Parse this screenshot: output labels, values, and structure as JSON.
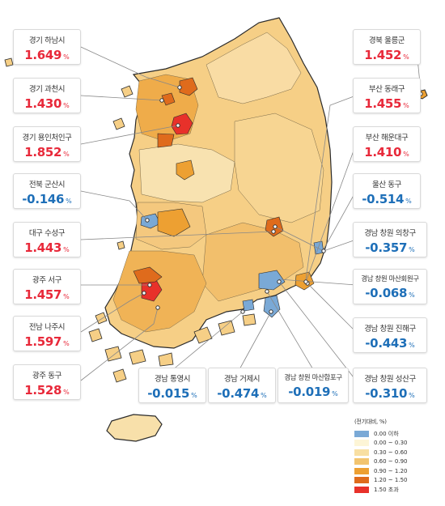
{
  "callouts": [
    {
      "name": "경기 하남시",
      "value": "1.649",
      "unit": "%",
      "sign": "pos"
    },
    {
      "name": "경기 과천시",
      "value": "1.430",
      "unit": "%",
      "sign": "pos"
    },
    {
      "name": "경기 용인처인구",
      "value": "1.852",
      "unit": "%",
      "sign": "pos"
    },
    {
      "name": "전북 군산시",
      "value": "-0.146",
      "unit": "%",
      "sign": "neg"
    },
    {
      "name": "대구 수성구",
      "value": "1.443",
      "unit": "%",
      "sign": "pos"
    },
    {
      "name": "광주 서구",
      "value": "1.457",
      "unit": "%",
      "sign": "pos"
    },
    {
      "name": "전남 나주시",
      "value": "1.597",
      "unit": "%",
      "sign": "pos"
    },
    {
      "name": "광주 동구",
      "value": "1.528",
      "unit": "%",
      "sign": "pos"
    },
    {
      "name": "경남 통영시",
      "value": "-0.015",
      "unit": "%",
      "sign": "neg"
    },
    {
      "name": "경남 거제시",
      "value": "-0.474",
      "unit": "%",
      "sign": "neg"
    },
    {
      "name": "경남 창원 마산합포구",
      "value": "-0.019",
      "unit": "%",
      "sign": "neg"
    },
    {
      "name": "경남 창원 성산구",
      "value": "-0.310",
      "unit": "%",
      "sign": "neg"
    },
    {
      "name": "경남 창원 진해구",
      "value": "-0.443",
      "unit": "%",
      "sign": "neg"
    },
    {
      "name": "경남 창원 마산회원구",
      "value": "-0.068",
      "unit": "%",
      "sign": "neg"
    },
    {
      "name": "경남 창원 의창구",
      "value": "-0.357",
      "unit": "%",
      "sign": "neg"
    },
    {
      "name": "울산 동구",
      "value": "-0.514",
      "unit": "%",
      "sign": "neg"
    },
    {
      "name": "부산 해운대구",
      "value": "1.410",
      "unit": "%",
      "sign": "pos"
    },
    {
      "name": "부산 동래구",
      "value": "1.455",
      "unit": "%",
      "sign": "pos"
    },
    {
      "name": "경북 울릉군",
      "value": "1.452",
      "unit": "%",
      "sign": "pos"
    }
  ],
  "legend": {
    "title": "(전기대비, %)",
    "items": [
      {
        "label": "0.00 이하",
        "color": "#7aa9d6"
      },
      {
        "label": "0.00 ~ 0.30",
        "color": "#fdf5d6"
      },
      {
        "label": "0.30 ~ 0.60",
        "color": "#f8dfa2"
      },
      {
        "label": "0.60 ~ 0.90",
        "color": "#f2c46f"
      },
      {
        "label": "0.90 ~ 1.20",
        "color": "#eda032"
      },
      {
        "label": "1.20 ~ 1.50",
        "color": "#df6b1c"
      },
      {
        "label": "1.50 초과",
        "color": "#e8312a"
      }
    ]
  },
  "colors": {
    "positive": "#e8293a",
    "negative": "#1e6fb8",
    "map_base": "#f5c97a",
    "border": "#2b2b2b"
  }
}
